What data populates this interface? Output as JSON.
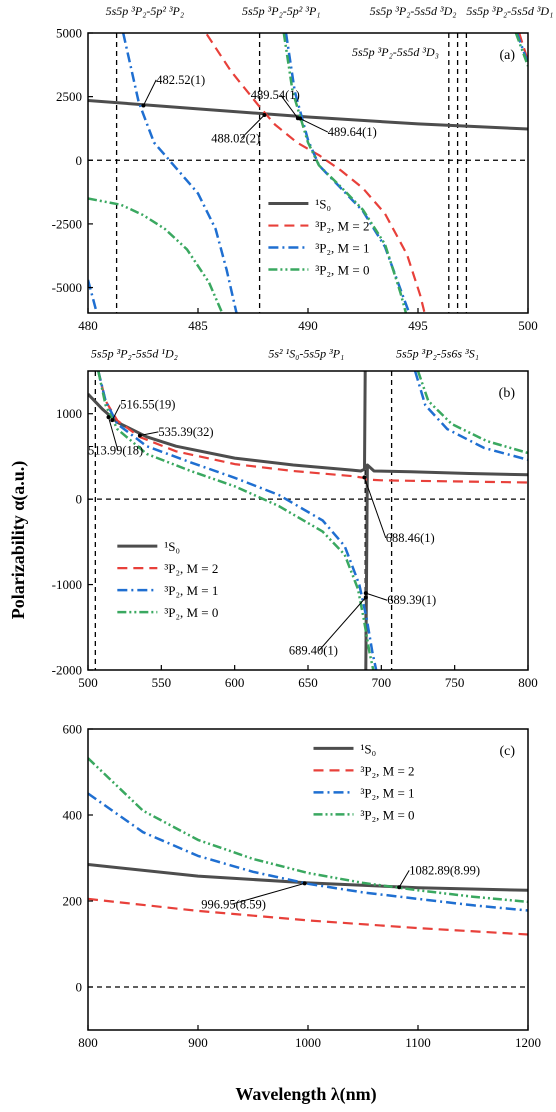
{
  "colors": {
    "S0": "#4d4d4d",
    "M2": "#e8403a",
    "M1": "#1f6fd1",
    "M0": "#3aa860"
  },
  "axis_titles": {
    "y": "Polarizability α(a.u.)",
    "x": "Wavelength λ(nm)"
  },
  "chart_data": [
    {
      "type": "line",
      "panel_label": "(a)",
      "xlim": [
        480,
        500
      ],
      "ylim": [
        -6000,
        5000
      ],
      "xticks": [
        "480",
        "485",
        "490",
        "495",
        "500"
      ],
      "yticks": [
        "-5000",
        "-2500",
        "0",
        "2500",
        "5000"
      ],
      "xtick_values": [
        480,
        485,
        490,
        495,
        500
      ],
      "ytick_values": [
        -5000,
        -2500,
        0,
        2500,
        5000
      ],
      "resonance_lines": [
        {
          "x": 481.3,
          "label": "5s5p ³P₂-5p² ³P₂",
          "lx": 480.8,
          "ly": 5700
        },
        {
          "x": 487.8,
          "label": "5s5p ³P₂-5p² ³P₁",
          "lx": 487.0,
          "ly": 5700
        },
        {
          "x": 496.4,
          "label": "5s5p ³P₂-5s5d ³D₂",
          "lx": 492.8,
          "ly": 5700
        },
        {
          "x": 496.8,
          "label": "5s5p ³P₂-5s5d ³D₃",
          "lx": 492.0,
          "ly": 4100
        },
        {
          "x": 497.2,
          "label": "5s5p ³P₂-5s5d ³D₁",
          "lx": 497.2,
          "ly": 5700
        }
      ],
      "series": [
        {
          "name": "¹S₀",
          "key": "S0",
          "x": [
            480,
            485,
            490,
            495,
            500
          ],
          "y": [
            2350,
            2020,
            1700,
            1430,
            1230
          ]
        },
        {
          "name": "³P₂, M = 2",
          "key": "M2",
          "x": [
            485.4,
            486.5,
            487.8,
            488.5,
            489.5,
            490.5,
            491.5,
            492.5,
            493.5,
            494.5,
            495.1,
            495.3
          ],
          "y": [
            4950,
            3500,
            2100,
            1400,
            700,
            200,
            -400,
            -1100,
            -2100,
            -3700,
            -5300,
            -6000
          ]
        },
        {
          "name": "³P₂, M = 1",
          "key": "M1",
          "x": [
            481.6,
            482.3,
            483.0,
            484.0,
            485.0,
            485.8,
            486.3,
            486.75
          ],
          "y": [
            5000,
            2300,
            700,
            -300,
            -1300,
            -2700,
            -4300,
            -6000
          ]
        },
        {
          "name": "³P₂, M = 0",
          "key": "M0",
          "x": [
            480,
            481.5,
            482.5,
            483.5,
            484.5,
            485.5,
            486.1
          ],
          "y": [
            -1500,
            -1750,
            -2150,
            -2700,
            -3500,
            -4800,
            -6000
          ]
        },
        {
          "name": "³P₂, M = 1 (b2)",
          "key": "M1",
          "legend": false,
          "x": [
            489.0,
            489.4,
            490.0,
            490.5,
            491.5,
            492.5,
            493.5,
            494.3,
            494.6
          ],
          "y": [
            5000,
            2700,
            800,
            -200,
            -1100,
            -2000,
            -3400,
            -5300,
            -6000
          ]
        },
        {
          "name": "³P₂, M = 0 (b2)",
          "key": "M0",
          "legend": false,
          "x": [
            488.9,
            489.3,
            490.0,
            490.5,
            491.5,
            492.5,
            493.5,
            494.2,
            494.45
          ],
          "y": [
            5000,
            2700,
            700,
            -200,
            -1050,
            -1950,
            -3300,
            -5200,
            -6000
          ]
        },
        {
          "name": "³P₂, M = 1 (b1)",
          "key": "M1",
          "legend": false,
          "x": [
            480,
            480.4
          ],
          "y": [
            -4700,
            -6000
          ]
        },
        {
          "name": "³P₂, M = 2 (b3)",
          "key": "M2",
          "legend": false,
          "x": [
            499.6,
            500
          ],
          "y": [
            5000,
            3900
          ]
        },
        {
          "name": "³P₂, M = 1 (b3)",
          "key": "M1",
          "legend": false,
          "x": [
            499.5,
            500
          ],
          "y": [
            5000,
            3800
          ]
        },
        {
          "name": "³P₂, M = 0 (b3)",
          "key": "M0",
          "legend": false,
          "x": [
            499.45,
            500
          ],
          "y": [
            5000,
            3700
          ]
        }
      ],
      "annotations": [
        {
          "text": "482.52(1)",
          "x": 482.52,
          "y": 2150,
          "tx": 483.1,
          "ty": 3000,
          "anchor": "start"
        },
        {
          "text": "489.54(1)",
          "x": 489.54,
          "y": 1650,
          "tx": 487.4,
          "ty": 2400,
          "anchor": "start"
        },
        {
          "text": "488.02(2)",
          "x": 488.02,
          "y": 1780,
          "tx": 485.6,
          "ty": 700,
          "anchor": "start"
        },
        {
          "text": "489.64(1)",
          "x": 489.64,
          "y": 1640,
          "tx": 490.9,
          "ty": 950,
          "anchor": "start"
        }
      ],
      "legend": {
        "position": "lower-center"
      }
    },
    {
      "type": "line",
      "panel_label": "(b)",
      "xlim": [
        500,
        800
      ],
      "ylim": [
        -2000,
        1500
      ],
      "xticks": [
        "500",
        "550",
        "600",
        "650",
        "700",
        "750",
        "800"
      ],
      "yticks": [
        "-2000",
        "-1000",
        "0",
        "1000"
      ],
      "xtick_values": [
        500,
        550,
        600,
        650,
        700,
        750,
        800
      ],
      "ytick_values": [
        -2000,
        -1000,
        0,
        1000
      ],
      "resonance_lines": [
        {
          "x": 505,
          "label": "5s5p ³P₂-5s5d ¹D₂",
          "lx": 502,
          "ly": 1660
        },
        {
          "x": 689,
          "label": "5s² ¹S₀-5s5p ³P₁",
          "lx": 623,
          "ly": 1660
        },
        {
          "x": 707,
          "label": "5s5p ³P₂-5s6s ³S₁",
          "lx": 710,
          "ly": 1660
        }
      ],
      "series": [
        {
          "name": "¹S₀",
          "key": "S0",
          "x": [
            500,
            510,
            520,
            540,
            560,
            600,
            640,
            680,
            686,
            688.5,
            689
          ],
          "y": [
            1230,
            1050,
            900,
            730,
            620,
            480,
            400,
            340,
            330,
            350,
            1500
          ]
        },
        {
          "name": "¹S₀ (b2)",
          "key": "S0",
          "legend": false,
          "x": [
            689.4,
            690.5,
            695,
            720,
            760,
            800
          ],
          "y": [
            -2000,
            400,
            330,
            320,
            300,
            285
          ]
        },
        {
          "name": "³P₂, M = 2",
          "key": "M2",
          "x": [
            507,
            512,
            520,
            535,
            560,
            600,
            640,
            680,
            688,
            690,
            700,
            720,
            760,
            800
          ],
          "y": [
            1500,
            1150,
            920,
            730,
            560,
            410,
            330,
            270,
            250,
            230,
            220,
            215,
            205,
            195
          ]
        },
        {
          "name": "³P₂, M = 1",
          "key": "M1",
          "x": [
            507,
            512,
            520,
            540,
            570,
            600,
            630,
            660,
            675,
            685,
            690,
            694,
            696.5
          ],
          "y": [
            1500,
            1150,
            880,
            620,
            430,
            250,
            50,
            -250,
            -550,
            -1000,
            -1400,
            -1800,
            -2000
          ]
        },
        {
          "name": "³P₂, M = 0",
          "key": "M0",
          "x": [
            507,
            512,
            520,
            540,
            570,
            600,
            630,
            660,
            675,
            684,
            688,
            692,
            694.5
          ],
          "y": [
            1500,
            1100,
            820,
            530,
            330,
            150,
            -80,
            -380,
            -650,
            -1050,
            -1400,
            -1800,
            -2000
          ]
        },
        {
          "name": "³P₂, M = 1 (b2)",
          "key": "M1",
          "legend": false,
          "x": [
            723,
            730,
            745,
            770,
            800
          ],
          "y": [
            1500,
            1100,
            820,
            600,
            460
          ]
        },
        {
          "name": "³P₂, M = 0 (b2)",
          "key": "M0",
          "legend": false,
          "x": [
            725,
            732,
            748,
            772,
            800
          ],
          "y": [
            1500,
            1150,
            880,
            680,
            540
          ]
        }
      ],
      "annotations": [
        {
          "text": "516.55(19)",
          "x": 516.55,
          "y": 925,
          "tx": 522,
          "ty": 1060,
          "anchor": "start"
        },
        {
          "text": "535.39(32)",
          "x": 535.39,
          "y": 745,
          "tx": 548,
          "ty": 740,
          "anchor": "start"
        },
        {
          "text": "513.99(18)",
          "x": 513.99,
          "y": 960,
          "tx": 500,
          "ty": 520,
          "anchor": "start"
        },
        {
          "text": "688.46(1)",
          "x": 688.46,
          "y": 255,
          "tx": 703,
          "ty": -500,
          "anchor": "start"
        },
        {
          "text": "689.39(1)",
          "x": 689.39,
          "y": -1100,
          "tx": 704,
          "ty": -1230,
          "anchor": "start"
        },
        {
          "text": "689.40(1)",
          "x": 689.4,
          "y": -1150,
          "tx": 637,
          "ty": -1820,
          "anchor": "start"
        }
      ],
      "legend": {
        "position": "lower-left"
      }
    },
    {
      "type": "line",
      "panel_label": "(c)",
      "xlim": [
        800,
        1200
      ],
      "ylim": [
        -100,
        600
      ],
      "xticks": [
        "800",
        "900",
        "1000",
        "1100",
        "1200"
      ],
      "yticks": [
        "0",
        "200",
        "400",
        "600"
      ],
      "xtick_values": [
        800,
        900,
        1000,
        1100,
        1200
      ],
      "ytick_values": [
        0,
        200,
        400,
        600
      ],
      "resonance_lines": [],
      "series": [
        {
          "name": "¹S₀",
          "key": "S0",
          "x": [
            800,
            900,
            1000,
            1100,
            1200
          ],
          "y": [
            285,
            258,
            242,
            231,
            225
          ]
        },
        {
          "name": "³P₂, M = 2",
          "key": "M2",
          "x": [
            800,
            900,
            1000,
            1100,
            1200
          ],
          "y": [
            205,
            177,
            155,
            137,
            122
          ]
        },
        {
          "name": "³P₂, M = 1",
          "key": "M1",
          "x": [
            800,
            850,
            900,
            950,
            1000,
            1050,
            1100,
            1150,
            1200
          ],
          "y": [
            450,
            360,
            305,
            268,
            240,
            220,
            205,
            190,
            178
          ]
        },
        {
          "name": "³P₂, M = 0",
          "key": "M0",
          "x": [
            800,
            850,
            900,
            950,
            1000,
            1050,
            1100,
            1150,
            1200
          ],
          "y": [
            532,
            410,
            342,
            298,
            265,
            242,
            225,
            210,
            198
          ]
        }
      ],
      "annotations": [
        {
          "text": "996.95(8.59)",
          "x": 996.95,
          "y": 241,
          "tx": 903,
          "ty": 183,
          "anchor": "start"
        },
        {
          "text": "1082.89(8.99)",
          "x": 1082.89,
          "y": 232,
          "tx": 1092,
          "ty": 262,
          "anchor": "start"
        }
      ],
      "legend": {
        "position": "top-right"
      }
    }
  ]
}
